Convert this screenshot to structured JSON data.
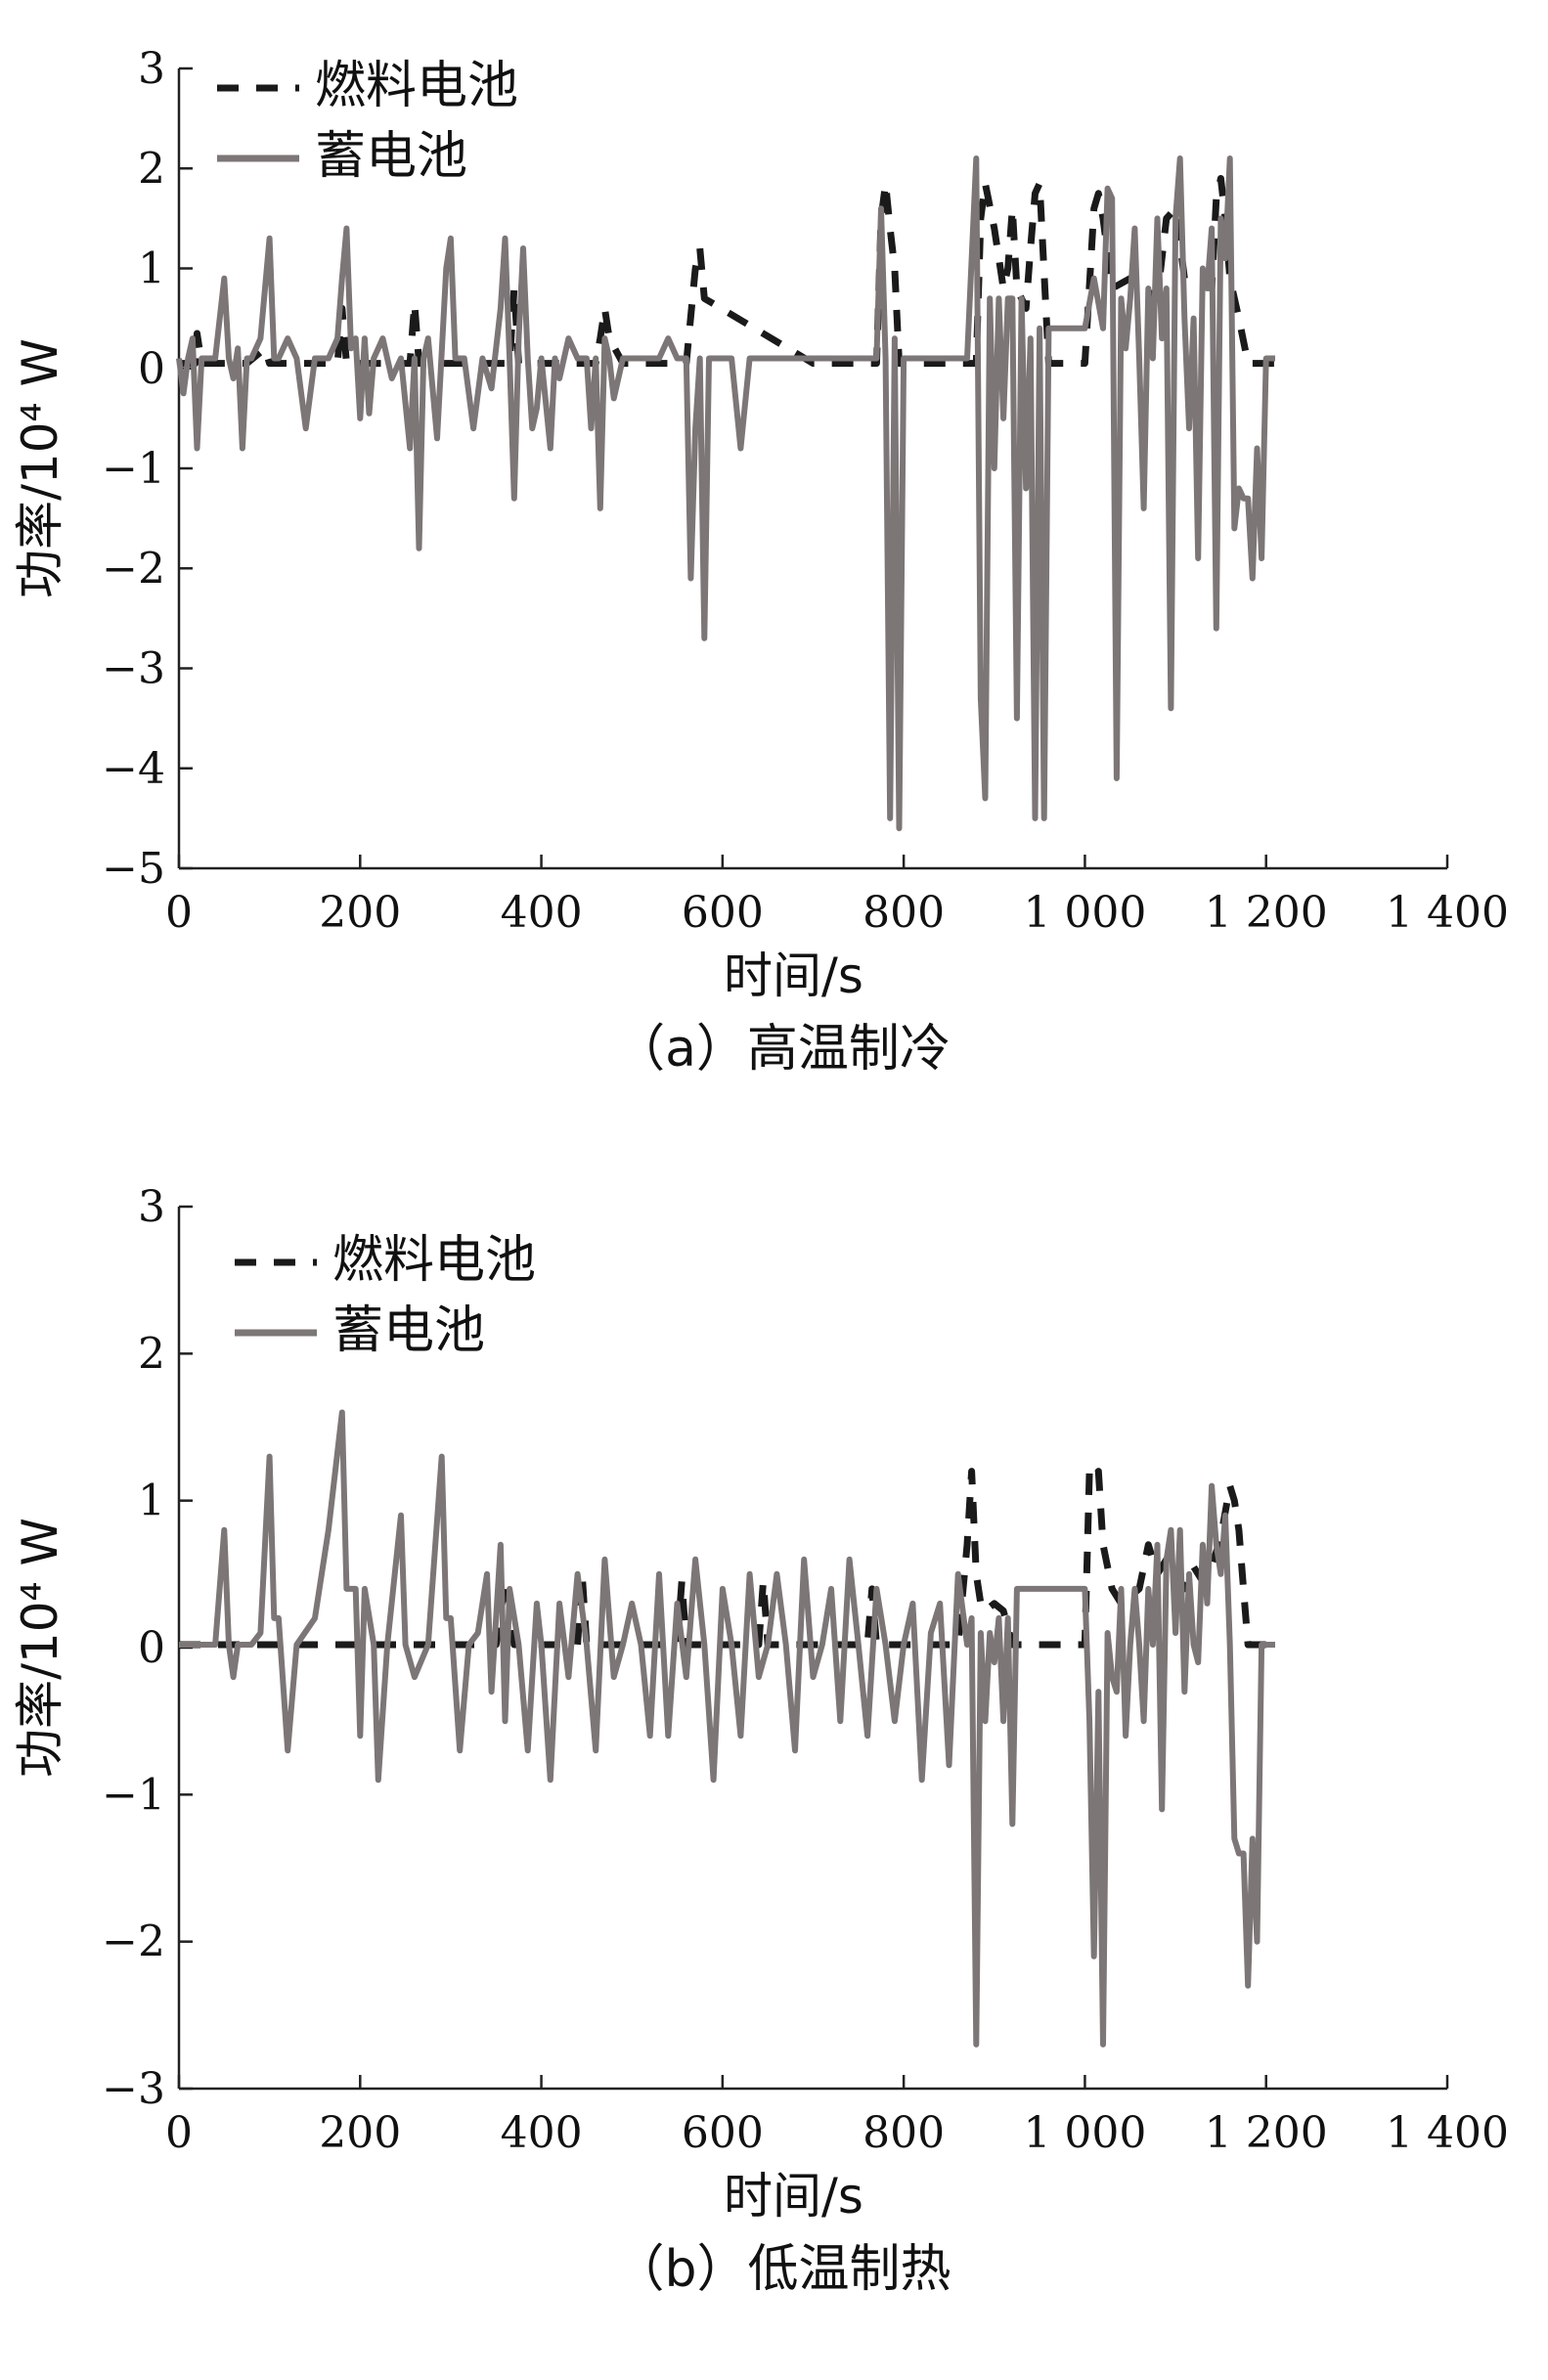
{
  "chart_data": [
    {
      "type": "line",
      "caption": "（a）高温制冷",
      "xlabel": "时间/s",
      "ylabel": "功率/10⁴ W",
      "xlim": [
        0,
        1400
      ],
      "ylim": [
        -5,
        3
      ],
      "xticks": [
        0,
        200,
        400,
        600,
        800,
        1000,
        1200,
        1400
      ],
      "xtick_labels": [
        "0",
        "200",
        "400",
        "600",
        "800",
        "1 000",
        "1 200",
        "1 400"
      ],
      "yticks": [
        3,
        2,
        1,
        0,
        -1,
        -2,
        -3,
        -4,
        -5
      ],
      "ytick_labels": [
        "3",
        "2",
        "1",
        "0",
        "−1",
        "−2",
        "−3",
        "−4",
        "−5"
      ],
      "legend_position": "top-left",
      "colors": {
        "fuel_cell": "#1a1a1a",
        "battery": "#7d7676"
      },
      "series": [
        {
          "name": "燃料电池",
          "style": "dashed",
          "x": [
            0,
            18,
            20,
            25,
            75,
            95,
            100,
            175,
            180,
            185,
            255,
            260,
            265,
            365,
            370,
            375,
            460,
            465,
            470,
            475,
            490,
            560,
            570,
            575,
            580,
            700,
            770,
            775,
            780,
            785,
            790,
            795,
            880,
            885,
            890,
            900,
            910,
            915,
            920,
            925,
            935,
            940,
            945,
            950,
            960,
            1000,
            1010,
            1015,
            1020,
            1030,
            1050,
            1080,
            1090,
            1100,
            1110,
            1140,
            1145,
            1150,
            1155,
            1160,
            1170,
            1180,
            1190,
            1200,
            1210
          ],
          "y": [
            0.05,
            0.05,
            0.35,
            0.05,
            0.05,
            0.2,
            0.05,
            0.05,
            0.6,
            0.05,
            0.05,
            0.65,
            0.05,
            0.05,
            0.8,
            0.05,
            0.05,
            0.3,
            0.6,
            0.3,
            0.05,
            0.05,
            1.0,
            1.2,
            0.7,
            0.05,
            0.05,
            1.5,
            1.85,
            1.4,
            1.0,
            0.05,
            0.05,
            1.5,
            1.85,
            1.4,
            0.8,
            1.0,
            1.6,
            0.8,
            0.6,
            1.2,
            1.75,
            1.85,
            0.05,
            0.05,
            1.6,
            1.75,
            1.5,
            0.8,
            0.9,
            0.7,
            1.5,
            1.6,
            0.9,
            0.8,
            1.7,
            1.9,
            1.5,
            0.9,
            0.5,
            0.05,
            0.05,
            0.05,
            0.05
          ]
        },
        {
          "name": "蓄电池",
          "style": "solid",
          "x": [
            0,
            5,
            10,
            15,
            20,
            25,
            30,
            40,
            50,
            55,
            60,
            65,
            70,
            75,
            80,
            90,
            100,
            105,
            110,
            120,
            130,
            140,
            150,
            165,
            175,
            180,
            185,
            190,
            195,
            200,
            205,
            210,
            215,
            225,
            235,
            245,
            255,
            260,
            265,
            270,
            275,
            285,
            295,
            300,
            305,
            315,
            325,
            335,
            345,
            355,
            360,
            365,
            370,
            375,
            380,
            385,
            390,
            395,
            400,
            410,
            415,
            420,
            430,
            440,
            450,
            455,
            460,
            465,
            470,
            475,
            480,
            490,
            500,
            510,
            520,
            530,
            540,
            550,
            560,
            565,
            570,
            575,
            580,
            585,
            590,
            600,
            610,
            620,
            630,
            640,
            650,
            660,
            670,
            680,
            690,
            700,
            710,
            720,
            730,
            740,
            750,
            760,
            770,
            775,
            780,
            785,
            790,
            795,
            800,
            810,
            820,
            830,
            840,
            850,
            860,
            870,
            880,
            885,
            890,
            895,
            900,
            905,
            910,
            915,
            920,
            925,
            930,
            935,
            940,
            945,
            950,
            955,
            960,
            980,
            1000,
            1010,
            1020,
            1025,
            1030,
            1035,
            1040,
            1045,
            1050,
            1055,
            1060,
            1065,
            1070,
            1075,
            1080,
            1085,
            1090,
            1095,
            1100,
            1105,
            1110,
            1115,
            1120,
            1125,
            1130,
            1135,
            1140,
            1145,
            1150,
            1155,
            1160,
            1165,
            1170,
            1175,
            1180,
            1185,
            1190,
            1195,
            1200,
            1205,
            1210
          ],
          "y": [
            0.1,
            -0.25,
            0.1,
            0.3,
            -0.8,
            0.1,
            0.1,
            0.1,
            0.9,
            0.1,
            -0.1,
            0.2,
            -0.8,
            0.1,
            0.1,
            0.3,
            1.3,
            0.1,
            0.1,
            0.3,
            0.1,
            -0.6,
            0.1,
            0.1,
            0.3,
            0.9,
            1.4,
            0.2,
            0.3,
            -0.5,
            0.3,
            -0.45,
            0.1,
            0.3,
            -0.1,
            0.1,
            -0.8,
            0.1,
            -1.8,
            0.1,
            0.3,
            -0.7,
            1.0,
            1.3,
            0.1,
            0.1,
            -0.6,
            0.1,
            -0.2,
            0.6,
            1.3,
            0.1,
            -1.3,
            0.3,
            1.2,
            0.1,
            -0.6,
            -0.4,
            0.1,
            -0.8,
            0.1,
            -0.1,
            0.3,
            0.1,
            0.1,
            -0.6,
            0.1,
            -1.4,
            0.3,
            0.1,
            -0.3,
            0.1,
            0.1,
            0.1,
            0.1,
            0.1,
            0.3,
            0.1,
            0.1,
            -2.1,
            -0.6,
            0.1,
            -2.7,
            0.1,
            0.1,
            0.1,
            0.1,
            -0.8,
            0.1,
            0.1,
            0.1,
            0.1,
            0.1,
            0.1,
            0.1,
            0.1,
            0.1,
            0.1,
            0.1,
            0.1,
            0.1,
            0.1,
            0.1,
            1.6,
            0.1,
            -4.5,
            0.3,
            -4.6,
            0.1,
            0.1,
            0.1,
            0.1,
            0.1,
            0.1,
            0.1,
            0.1,
            2.1,
            -3.3,
            -4.3,
            0.7,
            -1.0,
            0.7,
            -0.5,
            0.7,
            0.7,
            -3.5,
            0.7,
            -1.2,
            0.3,
            -4.5,
            0.4,
            -4.5,
            0.4,
            0.4,
            0.4,
            0.9,
            0.4,
            1.8,
            1.7,
            -4.1,
            0.7,
            0.2,
            0.7,
            1.4,
            0.1,
            -1.4,
            0.8,
            0.1,
            1.5,
            0.3,
            0.8,
            -3.4,
            1.5,
            2.1,
            0.5,
            -0.6,
            0.5,
            -1.9,
            1.0,
            0.8,
            1.4,
            -2.6,
            1.5,
            1.1,
            2.1,
            -1.6,
            -1.2,
            -1.3,
            -1.3,
            -2.1,
            -0.8,
            -1.9,
            0.1,
            0.1,
            0.1
          ]
        }
      ]
    },
    {
      "type": "line",
      "caption": "（b）低温制热",
      "xlabel": "时间/s",
      "ylabel": "功率/10⁴ W",
      "xlim": [
        0,
        1400
      ],
      "ylim": [
        -3,
        3
      ],
      "xticks": [
        0,
        200,
        400,
        600,
        800,
        1000,
        1200,
        1400
      ],
      "xtick_labels": [
        "0",
        "200",
        "400",
        "600",
        "800",
        "1 000",
        "1 200",
        "1 400"
      ],
      "yticks": [
        3,
        2,
        1,
        0,
        -1,
        -2,
        -3
      ],
      "ytick_labels": [
        "3",
        "2",
        "1",
        "0",
        "−1",
        "−2",
        "−3"
      ],
      "legend_position": "top-left",
      "colors": {
        "fuel_cell": "#1a1a1a",
        "battery": "#7d7676"
      },
      "series": [
        {
          "name": "燃料电池",
          "style": "dashed",
          "x": [
            0,
            350,
            360,
            365,
            370,
            440,
            445,
            450,
            550,
            555,
            560,
            640,
            645,
            650,
            760,
            765,
            770,
            860,
            870,
            875,
            880,
            885,
            890,
            900,
            910,
            920,
            1000,
            1005,
            1010,
            1015,
            1020,
            1030,
            1040,
            1050,
            1060,
            1070,
            1080,
            1090,
            1100,
            1110,
            1120,
            1130,
            1140,
            1150,
            1160,
            1165,
            1170,
            1175,
            1180,
            1210
          ],
          "y": [
            0.02,
            0.02,
            0.45,
            0.3,
            0.02,
            0.02,
            0.5,
            0.02,
            0.02,
            0.45,
            0.02,
            0.02,
            0.45,
            0.02,
            0.02,
            0.4,
            0.02,
            0.02,
            0.7,
            1.2,
            0.5,
            0.3,
            0.25,
            0.3,
            0.25,
            0.02,
            0.02,
            1.2,
            1.15,
            1.2,
            0.7,
            0.4,
            0.3,
            0.35,
            0.4,
            0.7,
            0.5,
            0.6,
            0.5,
            0.4,
            0.55,
            0.45,
            0.55,
            0.75,
            1.1,
            1.0,
            0.8,
            0.4,
            0.02,
            0.02
          ]
        },
        {
          "name": "蓄电池",
          "style": "solid",
          "x": [
            0,
            40,
            50,
            55,
            60,
            65,
            70,
            80,
            90,
            100,
            105,
            110,
            120,
            130,
            150,
            165,
            180,
            185,
            195,
            200,
            205,
            215,
            220,
            230,
            245,
            250,
            260,
            275,
            290,
            295,
            300,
            310,
            320,
            330,
            340,
            345,
            355,
            360,
            365,
            375,
            385,
            395,
            400,
            410,
            420,
            430,
            440,
            450,
            460,
            470,
            480,
            490,
            500,
            510,
            520,
            530,
            540,
            550,
            560,
            570,
            580,
            590,
            600,
            610,
            620,
            630,
            640,
            650,
            660,
            670,
            680,
            690,
            700,
            710,
            720,
            730,
            740,
            750,
            760,
            770,
            780,
            790,
            800,
            810,
            820,
            830,
            840,
            850,
            860,
            870,
            875,
            880,
            885,
            890,
            895,
            900,
            905,
            910,
            915,
            920,
            925,
            930,
            940,
            960,
            980,
            1000,
            1005,
            1010,
            1015,
            1020,
            1025,
            1030,
            1035,
            1040,
            1045,
            1050,
            1055,
            1060,
            1065,
            1070,
            1075,
            1080,
            1085,
            1090,
            1095,
            1100,
            1105,
            1110,
            1115,
            1120,
            1125,
            1130,
            1135,
            1140,
            1145,
            1150,
            1155,
            1160,
            1165,
            1170,
            1175,
            1180,
            1185,
            1190,
            1195,
            1200,
            1210
          ],
          "y": [
            0.02,
            0.02,
            0.8,
            0.02,
            -0.2,
            0.02,
            0.02,
            0.02,
            0.1,
            1.3,
            0.2,
            0.2,
            -0.7,
            0.02,
            0.2,
            0.8,
            1.6,
            0.4,
            0.4,
            -0.6,
            0.4,
            0.02,
            -0.9,
            0.02,
            0.9,
            0.02,
            -0.2,
            0.02,
            1.3,
            0.2,
            0.2,
            -0.7,
            0.02,
            0.1,
            0.5,
            -0.3,
            0.7,
            -0.5,
            0.4,
            0.02,
            -0.7,
            0.3,
            0.02,
            -0.9,
            0.3,
            -0.2,
            0.5,
            0.02,
            -0.7,
            0.6,
            -0.2,
            0.02,
            0.3,
            0.02,
            -0.6,
            0.5,
            -0.6,
            0.3,
            -0.2,
            0.6,
            0.02,
            -0.9,
            0.4,
            0.02,
            -0.6,
            0.5,
            -0.2,
            0.02,
            0.5,
            0.02,
            -0.7,
            0.6,
            -0.2,
            0.02,
            0.4,
            -0.5,
            0.6,
            0.02,
            -0.6,
            0.4,
            0.02,
            -0.5,
            0.02,
            0.3,
            -0.9,
            0.1,
            0.3,
            -0.8,
            0.5,
            0.02,
            0.2,
            -2.7,
            0.1,
            -0.5,
            0.1,
            -0.1,
            0.2,
            -0.5,
            0.2,
            -1.2,
            0.4,
            0.4,
            0.4,
            0.4,
            0.4,
            0.4,
            -0.5,
            -2.1,
            -0.3,
            -2.7,
            0.1,
            -0.2,
            -0.3,
            0.4,
            -0.6,
            0.02,
            0.4,
            0.02,
            -0.5,
            0.4,
            0.02,
            0.7,
            -1.1,
            0.6,
            0.8,
            0.1,
            0.8,
            -0.3,
            0.5,
            0.02,
            -0.1,
            0.7,
            0.3,
            1.1,
            0.7,
            0.5,
            0.9,
            0.02,
            -1.3,
            -1.4,
            -1.4,
            -2.3,
            -1.3,
            -2.0,
            0.02,
            0.02,
            0.02
          ]
        }
      ]
    }
  ]
}
